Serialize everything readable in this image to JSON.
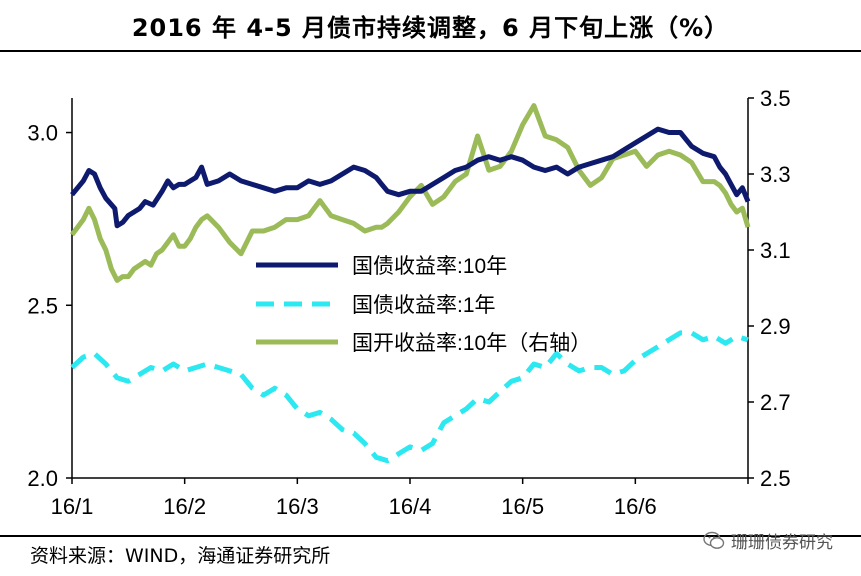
{
  "title": "2016 年 4-5 月债市持续调整，6 月下旬上涨（%）",
  "source": "资料来源：WIND，海通证券研究所",
  "watermark": "珊珊债券研究",
  "colors": {
    "gov10": "#0d1a6e",
    "gov1": "#2ce8f0",
    "cdb10": "#9bbb59",
    "axis": "#000000"
  },
  "chart_data": {
    "type": "line",
    "title": "2016 年 4-5 月债市持续调整，6 月下旬上涨（%）",
    "x_labels": [
      "16/1",
      "16/2",
      "16/3",
      "16/4",
      "16/5",
      "16/6"
    ],
    "left_axis": {
      "min": 2.0,
      "max": 3.1,
      "ticks": [
        "2.0",
        "2.5",
        "3.0"
      ],
      "tick_values": [
        2.0,
        2.5,
        3.0
      ]
    },
    "right_axis": {
      "min": 2.5,
      "max": 3.5,
      "ticks": [
        "2.5",
        "2.7",
        "2.9",
        "3.1",
        "3.3",
        "3.5"
      ],
      "tick_values": [
        2.5,
        2.7,
        2.9,
        3.1,
        3.3,
        3.5
      ]
    },
    "x_range": [
      0,
      6
    ],
    "series": [
      {
        "name": "国债收益率:10年",
        "axis": "left",
        "style": "solid",
        "x": [
          0,
          0.1,
          0.15,
          0.2,
          0.25,
          0.3,
          0.38,
          0.4,
          0.45,
          0.5,
          0.55,
          0.6,
          0.65,
          0.72,
          0.8,
          0.85,
          0.9,
          0.95,
          1.0,
          1.05,
          1.1,
          1.15,
          1.2,
          1.3,
          1.4,
          1.5,
          1.6,
          1.7,
          1.8,
          1.9,
          2.0,
          2.1,
          2.2,
          2.3,
          2.4,
          2.5,
          2.6,
          2.7,
          2.75,
          2.8,
          2.9,
          3.0,
          3.1,
          3.2,
          3.3,
          3.4,
          3.5,
          3.6,
          3.7,
          3.8,
          3.9,
          4.0,
          4.1,
          4.2,
          4.3,
          4.4,
          4.5,
          4.6,
          4.7,
          4.8,
          4.9,
          5.0,
          5.1,
          5.2,
          5.3,
          5.4,
          5.5,
          5.6,
          5.7,
          5.75,
          5.8,
          5.85,
          5.9,
          5.95,
          6.0
        ],
        "values": [
          2.82,
          2.86,
          2.89,
          2.88,
          2.84,
          2.81,
          2.78,
          2.73,
          2.74,
          2.76,
          2.77,
          2.78,
          2.8,
          2.79,
          2.83,
          2.86,
          2.84,
          2.85,
          2.85,
          2.86,
          2.87,
          2.9,
          2.85,
          2.86,
          2.88,
          2.86,
          2.85,
          2.84,
          2.83,
          2.84,
          2.84,
          2.86,
          2.85,
          2.86,
          2.88,
          2.9,
          2.89,
          2.87,
          2.85,
          2.83,
          2.82,
          2.83,
          2.83,
          2.85,
          2.87,
          2.89,
          2.9,
          2.92,
          2.93,
          2.92,
          2.93,
          2.92,
          2.9,
          2.89,
          2.9,
          2.88,
          2.9,
          2.91,
          2.92,
          2.93,
          2.95,
          2.97,
          2.99,
          3.01,
          3.0,
          3.0,
          2.96,
          2.94,
          2.93,
          2.9,
          2.88,
          2.85,
          2.82,
          2.84,
          2.8
        ]
      },
      {
        "name": "国债收益率:1年",
        "axis": "left",
        "style": "dashed",
        "x": [
          0,
          0.1,
          0.2,
          0.3,
          0.4,
          0.5,
          0.6,
          0.7,
          0.8,
          0.9,
          1.0,
          1.1,
          1.2,
          1.3,
          1.4,
          1.5,
          1.6,
          1.7,
          1.8,
          1.9,
          2.0,
          2.1,
          2.2,
          2.3,
          2.4,
          2.5,
          2.6,
          2.7,
          2.8,
          2.9,
          3.0,
          3.1,
          3.2,
          3.3,
          3.4,
          3.5,
          3.6,
          3.7,
          3.8,
          3.9,
          4.0,
          4.1,
          4.2,
          4.3,
          4.4,
          4.5,
          4.6,
          4.7,
          4.8,
          4.9,
          5.0,
          5.1,
          5.2,
          5.3,
          5.4,
          5.5,
          5.6,
          5.7,
          5.8,
          5.9,
          6.0
        ],
        "values": [
          2.32,
          2.35,
          2.36,
          2.33,
          2.29,
          2.28,
          2.3,
          2.32,
          2.31,
          2.33,
          2.31,
          2.32,
          2.33,
          2.32,
          2.31,
          2.3,
          2.26,
          2.24,
          2.26,
          2.24,
          2.2,
          2.18,
          2.19,
          2.17,
          2.14,
          2.13,
          2.1,
          2.06,
          2.05,
          2.07,
          2.09,
          2.08,
          2.1,
          2.16,
          2.18,
          2.2,
          2.23,
          2.22,
          2.25,
          2.28,
          2.29,
          2.33,
          2.32,
          2.36,
          2.33,
          2.31,
          2.32,
          2.32,
          2.3,
          2.31,
          2.34,
          2.36,
          2.38,
          2.4,
          2.42,
          2.42,
          2.4,
          2.41,
          2.39,
          2.41,
          2.4
        ]
      },
      {
        "name": "国开收益率:10年（右轴）",
        "axis": "right",
        "style": "solid",
        "x": [
          0,
          0.1,
          0.15,
          0.2,
          0.25,
          0.3,
          0.35,
          0.4,
          0.45,
          0.5,
          0.55,
          0.6,
          0.65,
          0.7,
          0.75,
          0.8,
          0.85,
          0.9,
          0.95,
          1.0,
          1.05,
          1.1,
          1.15,
          1.2,
          1.3,
          1.4,
          1.5,
          1.6,
          1.7,
          1.8,
          1.9,
          2.0,
          2.1,
          2.2,
          2.3,
          2.4,
          2.5,
          2.6,
          2.7,
          2.75,
          2.8,
          2.9,
          3.0,
          3.1,
          3.2,
          3.3,
          3.4,
          3.5,
          3.6,
          3.7,
          3.8,
          3.9,
          4.0,
          4.1,
          4.2,
          4.3,
          4.4,
          4.5,
          4.6,
          4.7,
          4.8,
          4.9,
          5.0,
          5.1,
          5.2,
          5.3,
          5.4,
          5.5,
          5.6,
          5.7,
          5.75,
          5.8,
          5.85,
          5.9,
          5.95,
          6.0
        ],
        "values": [
          3.14,
          3.18,
          3.21,
          3.18,
          3.13,
          3.1,
          3.05,
          3.02,
          3.03,
          3.03,
          3.05,
          3.06,
          3.07,
          3.06,
          3.09,
          3.1,
          3.12,
          3.14,
          3.11,
          3.11,
          3.13,
          3.16,
          3.18,
          3.19,
          3.16,
          3.12,
          3.09,
          3.15,
          3.15,
          3.16,
          3.18,
          3.18,
          3.19,
          3.23,
          3.19,
          3.18,
          3.17,
          3.15,
          3.16,
          3.16,
          3.17,
          3.2,
          3.24,
          3.27,
          3.22,
          3.24,
          3.28,
          3.3,
          3.4,
          3.31,
          3.32,
          3.36,
          3.43,
          3.48,
          3.4,
          3.39,
          3.37,
          3.31,
          3.27,
          3.29,
          3.34,
          3.35,
          3.36,
          3.32,
          3.35,
          3.36,
          3.35,
          3.33,
          3.28,
          3.28,
          3.27,
          3.25,
          3.22,
          3.2,
          3.21,
          3.16
        ]
      }
    ],
    "legend": [
      "国债收益率:10年",
      "国债收益率:1年",
      "国开收益率:10年（右轴）"
    ],
    "legend_position": "center-left"
  }
}
